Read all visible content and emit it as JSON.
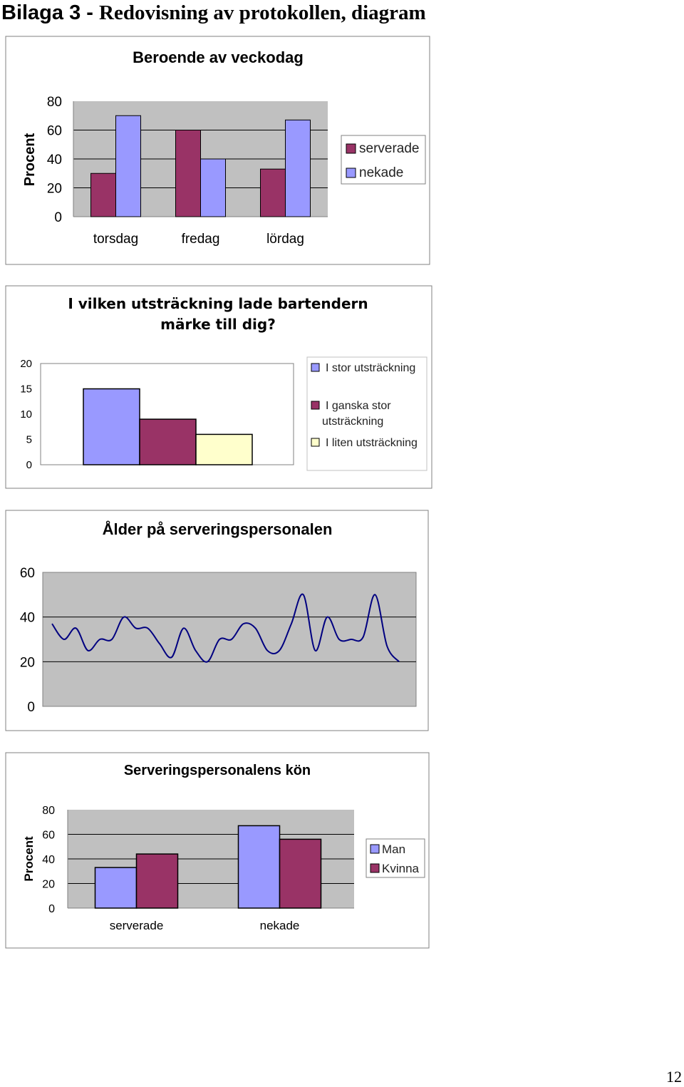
{
  "heading": {
    "part_a": "Bilaga 3 - ",
    "part_b": "Redovisning av protokollen, diagram"
  },
  "page_number": "12",
  "colors": {
    "plot_bg": "#c0c0c0",
    "maroon": "#993366",
    "periwinkle": "#9999ff",
    "light_yellow": "#ffffcc",
    "line": "#000080",
    "grid": "#000000"
  },
  "chart_data": [
    {
      "type": "bar",
      "title": "Beroende av veckodag",
      "ylabel": "Procent",
      "categories": [
        "torsdag",
        "fredag",
        "lördag"
      ],
      "series": [
        {
          "name": "serverade",
          "color": "#993366",
          "values": [
            30,
            60,
            33
          ]
        },
        {
          "name": "nekade",
          "color": "#9999ff",
          "values": [
            70,
            40,
            67
          ]
        }
      ],
      "ylim": [
        0,
        80
      ],
      "yticks": [
        "0",
        "20",
        "40",
        "60",
        "80"
      ],
      "grid": true,
      "legend": "right"
    },
    {
      "type": "bar",
      "title_lines": [
        "I vilken utsträckning lade bartendern",
        "märke till dig?"
      ],
      "series": [
        {
          "name": "I stor utsträckning",
          "color": "#9999ff",
          "values": [
            15
          ]
        },
        {
          "name_lines": [
            "I ganska stor",
            "utsträckning"
          ],
          "color": "#993366",
          "values": [
            9
          ]
        },
        {
          "name": "I liten utsträckning",
          "color": "#ffffcc",
          "values": [
            6
          ]
        }
      ],
      "ylim": [
        0,
        20
      ],
      "yticks": [
        "0",
        "5",
        "10",
        "15",
        "20"
      ],
      "grid": false,
      "legend": "right"
    },
    {
      "type": "line",
      "title": "Ålder på serveringspersonalen",
      "values": [
        37,
        30,
        35,
        25,
        30,
        30,
        40,
        35,
        35,
        28,
        22,
        35,
        25,
        20,
        30,
        30,
        37,
        35,
        25,
        25,
        37,
        50,
        25,
        40,
        30,
        30,
        31,
        50,
        27,
        20
      ],
      "ylim": [
        0,
        60
      ],
      "yticks": [
        "0",
        "20",
        "40",
        "60"
      ],
      "grid": true,
      "smooth": true
    },
    {
      "type": "bar",
      "title": "Serveringspersonalens kön",
      "ylabel": "Procent",
      "categories": [
        "serverade",
        "nekade"
      ],
      "series": [
        {
          "name": "Man",
          "color": "#9999ff",
          "values": [
            33,
            67
          ]
        },
        {
          "name": "Kvinna",
          "color": "#993366",
          "values": [
            44,
            56
          ]
        }
      ],
      "ylim": [
        0,
        80
      ],
      "yticks": [
        "0",
        "20",
        "40",
        "60",
        "80"
      ],
      "grid": true,
      "legend": "right"
    }
  ]
}
